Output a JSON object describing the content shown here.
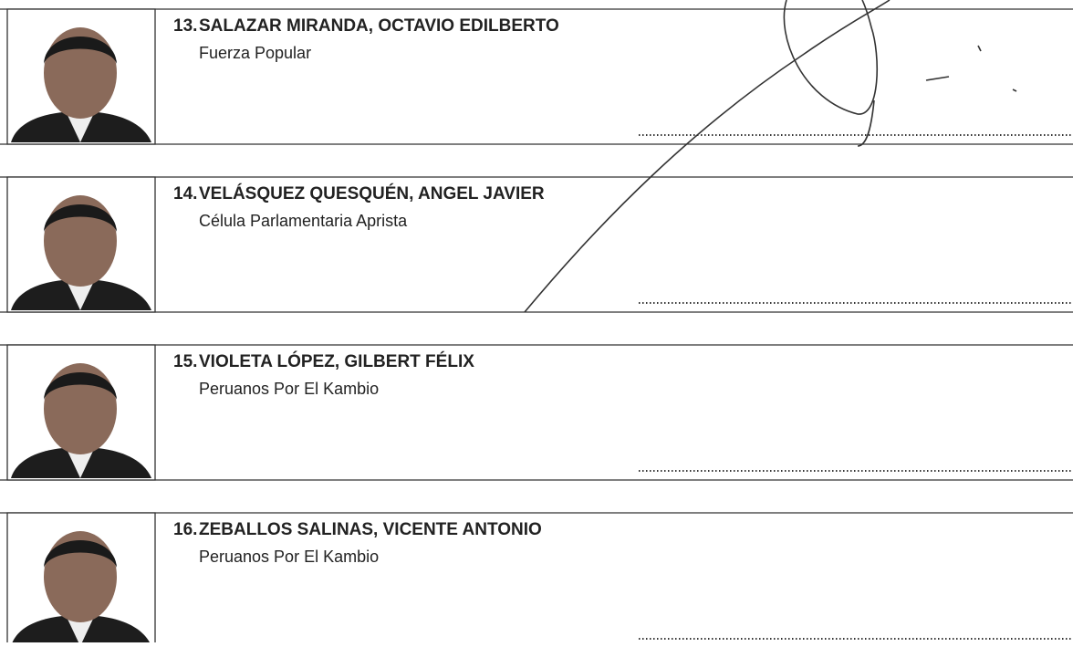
{
  "entries": [
    {
      "number": "13.",
      "name": "SALAZAR MIRANDA, OCTAVIO EDILBERTO",
      "party": "Fuerza Popular"
    },
    {
      "number": "14.",
      "name": "VELÁSQUEZ QUESQUÉN, ANGEL JAVIER",
      "party": "Célula Parlamentaria Aprista"
    },
    {
      "number": "15.",
      "name": "VIOLETA LÓPEZ, GILBERT FÉLIX",
      "party": "Peruanos Por El Kambio"
    },
    {
      "number": "16.",
      "name": "ZEBALLOS SALINAS, VICENTE ANTONIO",
      "party": "Peruanos Por El Kambio"
    }
  ]
}
